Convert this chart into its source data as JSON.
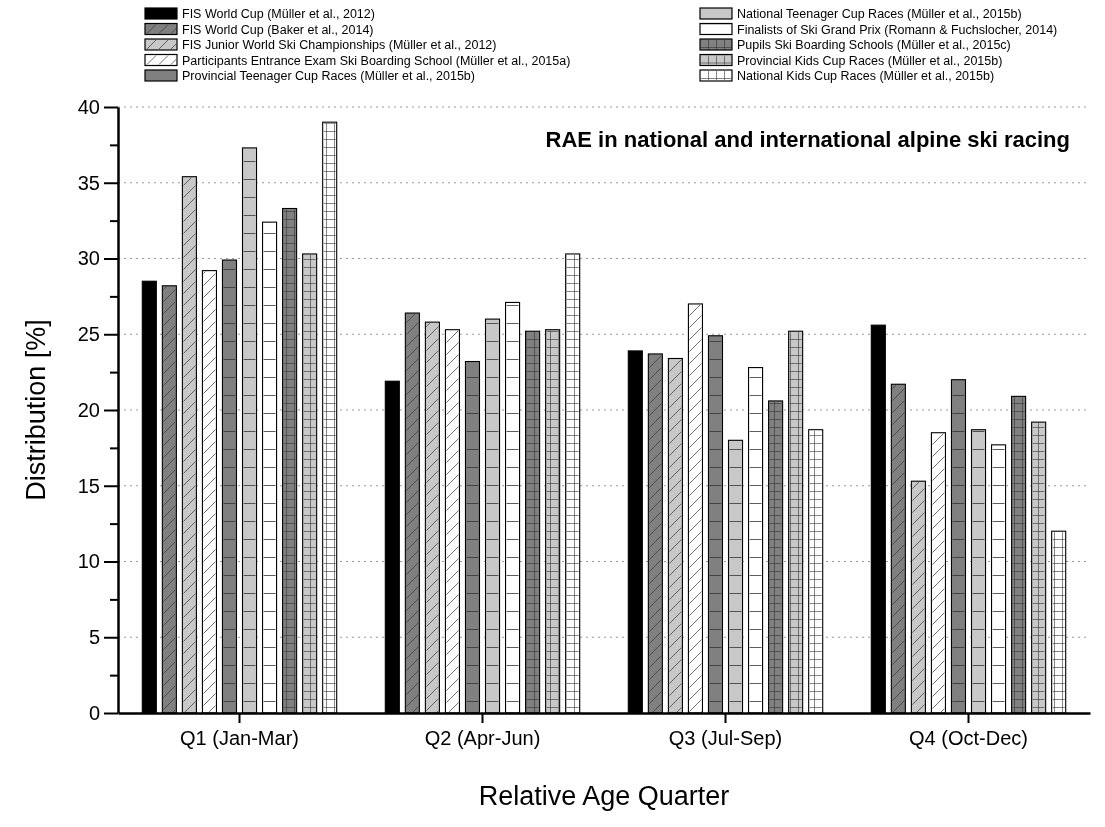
{
  "chart_data": {
    "type": "bar",
    "title": "RAE in national and international alpine ski racing",
    "xlabel": "Relative Age Quarter",
    "ylabel": "Distribution [%]",
    "categories": [
      "Q1 (Jan-Mar)",
      "Q2 (Apr-Jun)",
      "Q3 (Jul-Sep)",
      "Q4 (Oct-Dec)"
    ],
    "ylim": [
      0,
      40
    ],
    "yticks": [
      0,
      {
        "value": 2.5,
        "label": null
      },
      5,
      {
        "value": 7.5,
        "label": null
      },
      10,
      {
        "value": 12.5,
        "label": null
      },
      15,
      {
        "value": 17.5,
        "label": null
      },
      20,
      {
        "value": 22.5,
        "label": null
      },
      25,
      {
        "value": 27.5,
        "label": null
      },
      30,
      {
        "value": 32.5,
        "label": null
      },
      35,
      {
        "value": 37.5,
        "label": null
      },
      40
    ],
    "grid": "y",
    "legend": "top",
    "series": [
      {
        "name": "FIS World Cup (Müller et al., 2012)",
        "color": "#000000",
        "values": [
          28.5,
          21.9,
          23.9,
          25.6
        ]
      },
      {
        "name": "FIS World Cup (Baker et al., 2014)",
        "color": "#808080",
        "values": [
          28.2,
          26.4,
          23.7,
          21.7
        ]
      },
      {
        "name": "FIS Junior World Ski Championships (Müller et al., 2012)",
        "color": "#c8c8c8",
        "values": [
          35.4,
          25.8,
          23.4,
          15.3
        ]
      },
      {
        "name": "Participants Entrance Exam Ski Boarding School (Müller et al., 2015a)",
        "color": "#ffffff",
        "values": [
          29.2,
          25.3,
          27.0,
          18.5
        ]
      },
      {
        "name": "Provincial Teenager Cup Races (Müller et al., 2015b)",
        "color": "#808080",
        "values": [
          29.9,
          23.2,
          24.9,
          22.0
        ]
      },
      {
        "name": "National Teenager Cup Races (Müller et al., 2015b)",
        "color": "#c8c8c8",
        "values": [
          37.3,
          26.0,
          18.0,
          18.7
        ]
      },
      {
        "name": "Finalists of Ski Grand Prix (Romann & Fuchslocher, 2014)",
        "color": "#ffffff",
        "values": [
          32.4,
          27.1,
          22.8,
          17.7
        ]
      },
      {
        "name": "Pupils Ski Boarding Schools (Müller et al., 2015c)",
        "color": "#808080",
        "values": [
          33.3,
          25.2,
          20.6,
          20.9
        ]
      },
      {
        "name": "Provincial Kids Cup Races (Müller et al., 2015b)",
        "color": "#c8c8c8",
        "values": [
          30.3,
          25.3,
          25.2,
          19.2
        ]
      },
      {
        "name": "National Kids Cup Races (Müller et al., 2015b)",
        "color": "#ffffff",
        "values": [
          39.0,
          30.3,
          18.7,
          12.0
        ]
      }
    ]
  }
}
